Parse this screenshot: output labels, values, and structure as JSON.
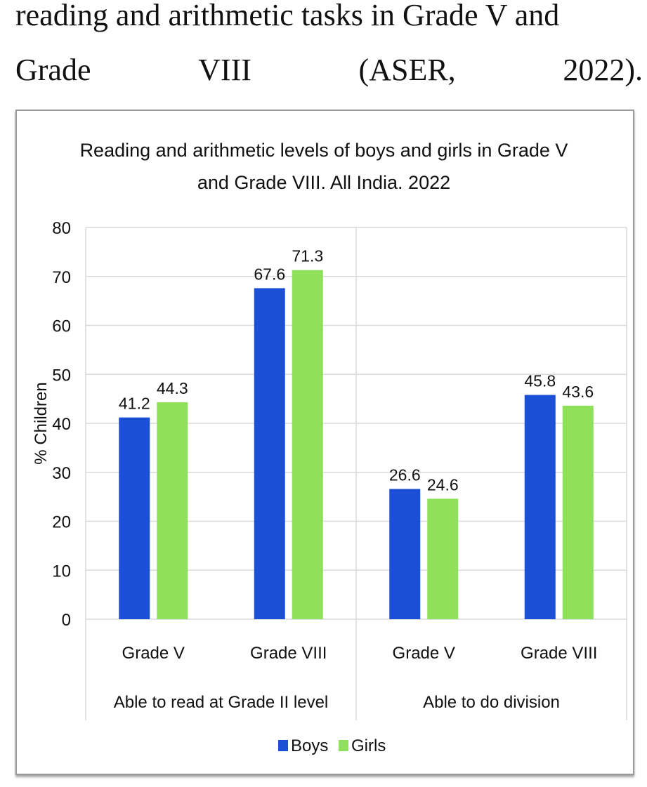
{
  "document": {
    "line1": "reading and arithmetic tasks in Grade V and",
    "line2_words": [
      "Grade",
      "VIII",
      "(ASER,",
      "2022)."
    ]
  },
  "chart_data": {
    "type": "bar",
    "title_lines": [
      "Reading and arithmetic levels of boys and girls in Grade V",
      "and Grade VIII. All India. 2022"
    ],
    "ylabel": "% Children",
    "ylim": [
      0,
      80
    ],
    "yticks": [
      0,
      10,
      20,
      30,
      40,
      50,
      60,
      70,
      80
    ],
    "grid": true,
    "groups": [
      {
        "label": "Able to read at Grade II level",
        "categories": [
          "Grade V",
          "Grade VIII"
        ]
      },
      {
        "label": "Able to do division",
        "categories": [
          "Grade V",
          "Grade VIII"
        ]
      }
    ],
    "categories": [
      "Grade V",
      "Grade VIII",
      "Grade V",
      "Grade VIII"
    ],
    "series": [
      {
        "name": "Boys",
        "color": "#1a4fd6",
        "values": [
          41.2,
          67.6,
          26.6,
          45.8
        ]
      },
      {
        "name": "Girls",
        "color": "#8fe05a",
        "values": [
          44.3,
          71.3,
          24.6,
          43.6
        ]
      }
    ],
    "legend_position": "bottom-center"
  }
}
